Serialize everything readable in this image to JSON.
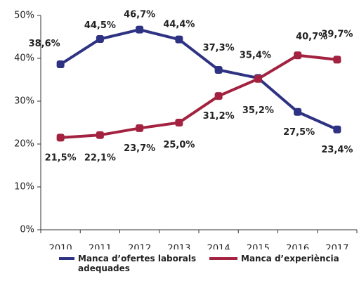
{
  "chart_data": {
    "type": "line",
    "categories": [
      "2010",
      "2011",
      "2012",
      "2013",
      "2014",
      "2015",
      "2016",
      "2017"
    ],
    "series": [
      {
        "name": "Manca d’ofertes laborals adequades",
        "color": "#2e3282",
        "values": [
          38.6,
          44.5,
          46.7,
          44.4,
          37.3,
          35.4,
          27.5,
          23.4
        ],
        "value_labels": [
          "38,6%",
          "44,5%",
          "46,7%",
          "44,4%",
          "37,3%",
          "35,4%",
          "27,5%",
          "23,4%"
        ]
      },
      {
        "name": "Manca d’experiència",
        "color": "#a3223f",
        "values": [
          21.5,
          22.1,
          23.7,
          25.0,
          31.2,
          35.2,
          40.7,
          39.7
        ],
        "value_labels": [
          "21,5%",
          "22,1%",
          "23,7%",
          "25,0%",
          "31,2%",
          "35,2%",
          "40,7%",
          "39,7%"
        ]
      }
    ],
    "ylim": [
      0,
      50
    ],
    "yticks": [
      {
        "value": 0,
        "label": "0%"
      },
      {
        "value": 10,
        "label": "10%"
      },
      {
        "value": 20,
        "label": "20%"
      },
      {
        "value": 30,
        "label": "30%"
      },
      {
        "value": 40,
        "label": "40%"
      },
      {
        "value": 50,
        "label": "50%"
      }
    ],
    "grid": false
  }
}
